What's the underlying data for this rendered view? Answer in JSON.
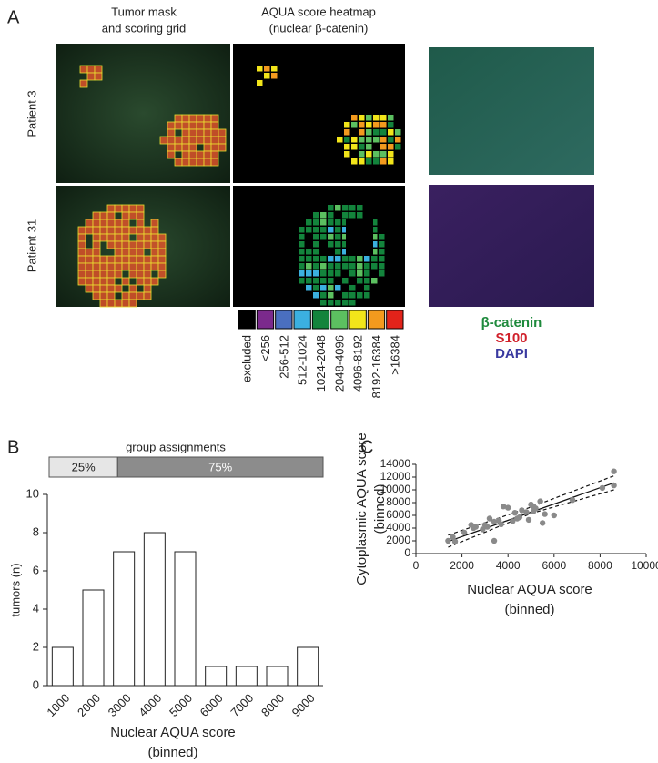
{
  "panel_labels": [
    "A",
    "B",
    "C"
  ],
  "panel_a": {
    "column_headers": [
      [
        "Tumor mask",
        "and scoring grid"
      ],
      [
        "AQUA score heatmap",
        "(nuclear β-catenin)"
      ]
    ],
    "row_labels": [
      "Patient 3",
      "Patient 31"
    ],
    "heatmap_legend": {
      "labels": [
        "excluded",
        "<256",
        "256-512",
        "512-1024",
        "1024-2048",
        "2048-4096",
        "4096-8192",
        "8192-16384",
        ">16384"
      ],
      "colors": [
        "#000000",
        "#7b2a8c",
        "#4a6fc0",
        "#3bb0e0",
        "#13843c",
        "#5cc060",
        "#f2e51a",
        "#f39a1e",
        "#e2231a"
      ]
    },
    "stain_legend": {
      "labels": [
        "β-catenin",
        "S100",
        "DAPI"
      ],
      "colors": [
        "#1e8a3c",
        "#d0202a",
        "#3a3aa0"
      ]
    }
  },
  "chart_data": [
    {
      "type": "bar",
      "y_label": "tumors (n)",
      "x_label": [
        "Nuclear AQUA score",
        "(binned)"
      ],
      "categories": [
        "1000",
        "2000",
        "3000",
        "4000",
        "5000",
        "6000",
        "7000",
        "8000",
        "9000"
      ],
      "values": [
        2,
        5,
        7,
        8,
        7,
        1,
        1,
        1,
        2
      ],
      "color": "#ffffff",
      "ylim": [
        0,
        10
      ],
      "yticks": [
        0,
        2,
        4,
        6,
        8,
        10
      ],
      "group_assignments": {
        "title": "group assignments",
        "values": [
          25,
          75
        ],
        "value_labels": [
          "25%",
          "75%"
        ],
        "colors": [
          "#e6e6e6",
          "#8c8c8c"
        ]
      }
    },
    {
      "type": "scatter",
      "x_label": [
        "Nuclear AQUA score",
        "(binned)"
      ],
      "y_label": [
        "Cytoplasmic AQUA score",
        "(binned)"
      ],
      "x": [
        1400,
        1600,
        1700,
        2100,
        2400,
        2500,
        2600,
        2900,
        3000,
        3100,
        3200,
        3400,
        3400,
        3600,
        3700,
        3800,
        4000,
        4200,
        4300,
        4400,
        4500,
        4600,
        4800,
        4900,
        5000,
        5100,
        5100,
        5200,
        5400,
        5500,
        5600,
        6000,
        6800,
        8100,
        8600,
        8600
      ],
      "y": [
        2000,
        2600,
        1900,
        3300,
        4500,
        4000,
        4200,
        3800,
        4500,
        4200,
        5500,
        5000,
        2000,
        5200,
        4600,
        7400,
        7200,
        5100,
        6400,
        5500,
        5700,
        6800,
        6500,
        5300,
        7700,
        7400,
        6600,
        7100,
        8200,
        4800,
        6200,
        6000,
        8400,
        10300,
        12900,
        10700
      ],
      "color": "#8a8a8a",
      "lines": [
        {
          "x": [
            1400,
            8600
          ],
          "y": [
            1900,
            11100
          ],
          "style": "solid"
        },
        {
          "x": [
            1400,
            5000,
            8600
          ],
          "y": [
            2900,
            7300,
            12200
          ],
          "style": "dashed"
        },
        {
          "x": [
            1400,
            5000,
            8600
          ],
          "y": [
            1000,
            6300,
            10000
          ],
          "style": "dashed"
        }
      ],
      "xlim": [
        0,
        10000
      ],
      "ylim": [
        0,
        14000
      ],
      "xticks": [
        0,
        2000,
        4000,
        6000,
        8000,
        10000
      ],
      "yticks": [
        0,
        2000,
        4000,
        6000,
        8000,
        10000,
        12000,
        14000
      ]
    }
  ]
}
